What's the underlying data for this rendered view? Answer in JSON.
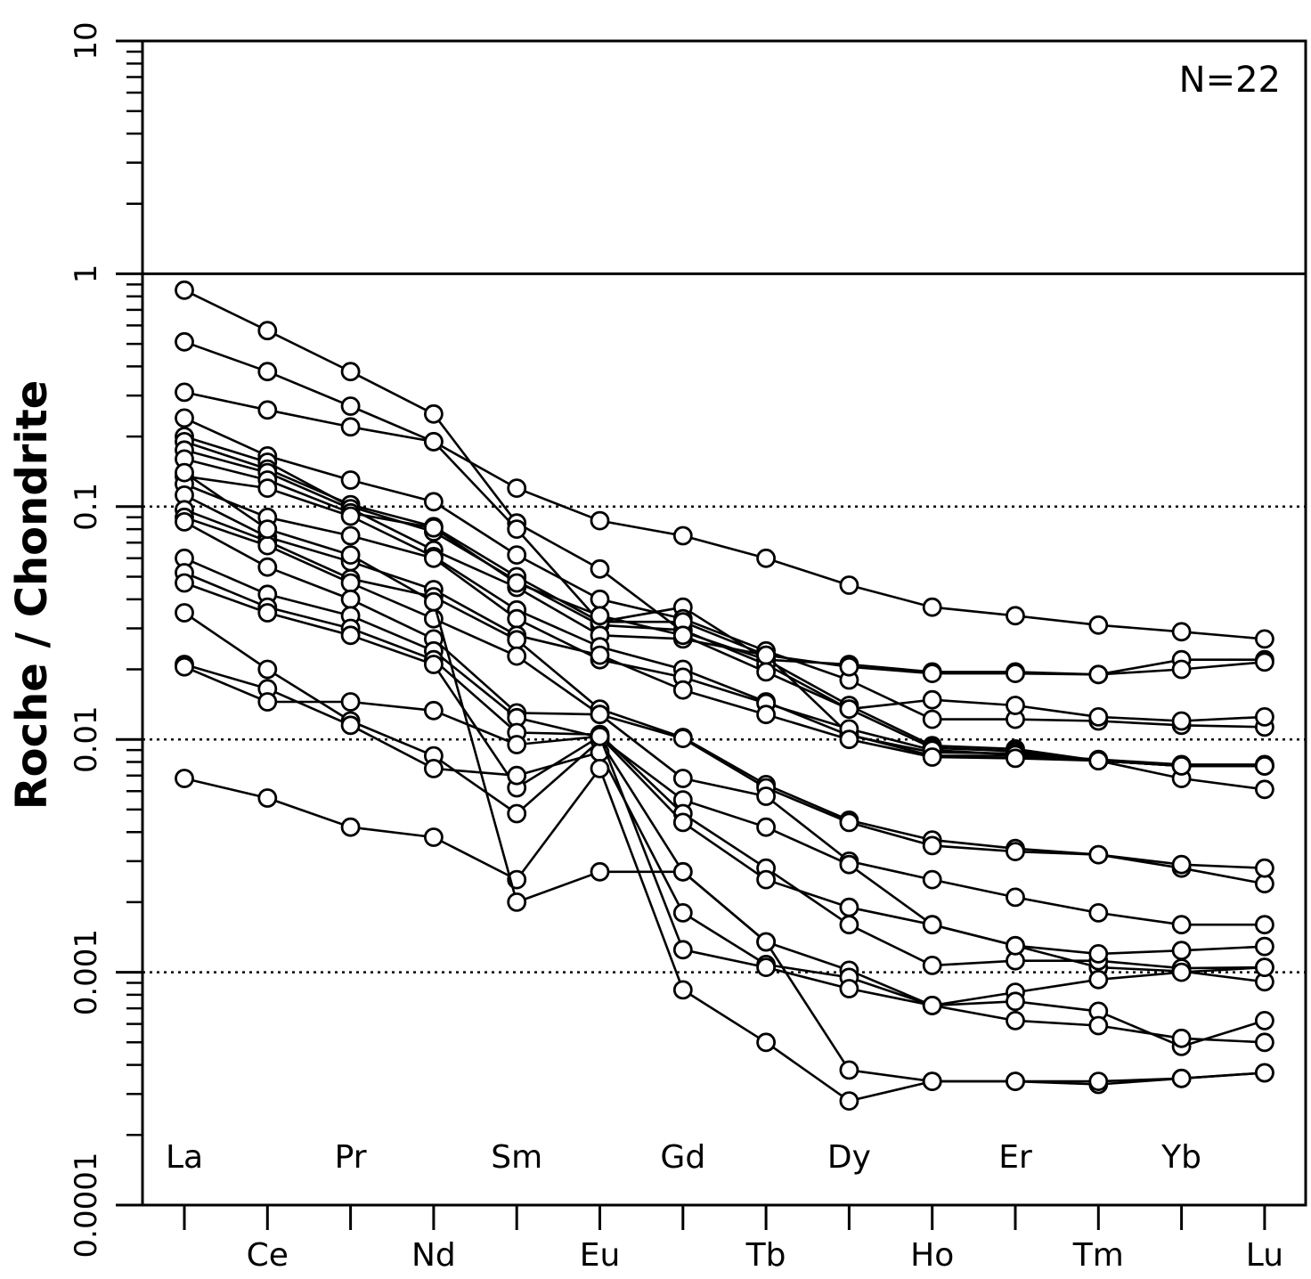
{
  "chart_data": {
    "type": "line",
    "ylabel": "Roche / Chondrite",
    "yscale": "log",
    "ylim": [
      0.0001,
      10
    ],
    "yticks": [
      {
        "value": 10,
        "label": "10"
      },
      {
        "value": 1,
        "label": "1"
      },
      {
        "value": 0.1,
        "label": "0.1"
      },
      {
        "value": 0.01,
        "label": "0.01"
      },
      {
        "value": 0.001,
        "label": "0.001"
      },
      {
        "value": 0.0001,
        "label": "0.0001"
      }
    ],
    "reference_lines": [
      1
    ],
    "dotted_lines": [
      0.1,
      0.01,
      0.001
    ],
    "categories": [
      "La",
      "Ce",
      "Pr",
      "Nd",
      "Sm",
      "Eu",
      "Gd",
      "Tb",
      "Dy",
      "Ho",
      "Er",
      "Tm",
      "Yb",
      "Lu"
    ],
    "annotation": "N=22",
    "marker": "open-circle",
    "series": [
      {
        "values": [
          0.85,
          0.57,
          0.38,
          0.25,
          0.085,
          0.054,
          0.029,
          0.022,
          0.014,
          0.0094,
          0.0091,
          0.0081,
          0.0077,
          0.0077
        ]
      },
      {
        "values": [
          0.51,
          0.38,
          0.27,
          0.19,
          0.08,
          0.032,
          0.037,
          0.022,
          0.021,
          0.0195,
          0.0195,
          0.019,
          0.022,
          0.022
        ]
      },
      {
        "values": [
          0.31,
          0.26,
          0.22,
          0.19,
          0.12,
          0.087,
          0.075,
          0.06,
          0.046,
          0.037,
          0.034,
          0.031,
          0.029,
          0.027
        ]
      },
      {
        "values": [
          0.24,
          0.165,
          0.13,
          0.105,
          0.062,
          0.04,
          0.033,
          0.024,
          0.018,
          0.0122,
          0.0122,
          0.012,
          0.0115,
          0.0113
        ]
      },
      {
        "values": [
          0.2,
          0.155,
          0.1,
          0.078,
          0.048,
          0.031,
          0.0295,
          0.021,
          0.0135,
          0.0092,
          0.0089,
          0.0081,
          0.0077,
          0.0077
        ]
      },
      {
        "values": [
          0.19,
          0.145,
          0.102,
          0.082,
          0.05,
          0.032,
          0.032,
          0.023,
          0.0205,
          0.0192,
          0.0192,
          0.019,
          0.02,
          0.0215
        ]
      },
      {
        "values": [
          0.175,
          0.14,
          0.098,
          0.065,
          0.045,
          0.028,
          0.027,
          0.023,
          0.0105,
          0.0085,
          0.0085,
          0.0081,
          0.0068,
          0.0061
        ]
      },
      {
        "values": [
          0.16,
          0.13,
          0.094,
          0.081,
          0.047,
          0.034,
          0.028,
          0.0195,
          0.0135,
          0.0148,
          0.014,
          0.0125,
          0.012,
          0.0125
        ]
      },
      {
        "values": [
          0.135,
          0.12,
          0.091,
          0.061,
          0.036,
          0.025,
          0.02,
          0.0145,
          0.0104,
          0.0088,
          0.0087,
          0.0081,
          0.0077,
          0.0077
        ]
      },
      {
        "values": [
          0.125,
          0.09,
          0.075,
          0.06,
          0.033,
          0.022,
          0.0185,
          0.0143,
          0.0111,
          0.009,
          0.0086,
          0.0082,
          0.0078,
          0.0078
        ]
      },
      {
        "values": [
          0.112,
          0.074,
          0.058,
          0.044,
          0.028,
          0.023,
          0.0163,
          0.0128,
          0.01,
          0.0084,
          0.0083,
          0.0081,
          0.0077,
          0.0077
        ]
      },
      {
        "values": [
          0.097,
          0.071,
          0.049,
          0.041,
          0.0268,
          0.0135,
          0.0102,
          0.0064,
          0.0045,
          0.0037,
          0.0034,
          0.0032,
          0.0028,
          0.0024
        ]
      },
      {
        "values": [
          0.09,
          0.068,
          0.047,
          0.033,
          0.0228,
          0.0128,
          0.0101,
          0.0062,
          0.0044,
          0.0035,
          0.0033,
          0.0032,
          0.0029,
          0.0028
        ]
      },
      {
        "values": [
          0.086,
          0.055,
          0.04,
          0.027,
          0.013,
          0.0128,
          0.0068,
          0.0057,
          0.003,
          0.0025,
          0.0021,
          0.0018,
          0.0016,
          0.0016
        ]
      },
      {
        "values": [
          0.06,
          0.042,
          0.034,
          0.024,
          0.0124,
          0.0102,
          0.0055,
          0.0042,
          0.0029,
          0.0016,
          0.0013,
          0.00105,
          0.00101,
          0.00091
        ]
      },
      {
        "values": [
          0.052,
          0.037,
          0.03,
          0.022,
          0.0107,
          0.0105,
          0.0048,
          0.0028,
          0.0016,
          0.00107,
          0.00112,
          0.00112,
          0.00104,
          0.00105
        ]
      },
      {
        "values": [
          0.047,
          0.035,
          0.028,
          0.021,
          0.0062,
          0.0103,
          0.0044,
          0.0025,
          0.0019,
          0.0016,
          0.0013,
          0.0012,
          0.00124,
          0.00129
        ]
      },
      {
        "values": [
          0.035,
          0.02,
          0.012,
          0.0085,
          0.0048,
          0.0099,
          0.0027,
          0.00135,
          0.00102,
          0.00072,
          0.00082,
          0.00093,
          0.001,
          0.00105
        ]
      },
      {
        "values": [
          0.021,
          0.0165,
          0.0115,
          0.0075,
          0.007,
          0.0088,
          0.0018,
          0.00108,
          0.00095,
          0.00072,
          0.00075,
          0.00068,
          0.00048,
          0.00062
        ]
      },
      {
        "values": [
          0.0205,
          0.0145,
          0.0145,
          0.0133,
          0.0095,
          0.0103,
          0.00125,
          0.00105,
          0.00085,
          0.00072,
          0.00062,
          0.00059,
          0.00052,
          0.0005
        ]
      },
      {
        "values": [
          0.0068,
          0.0056,
          0.0042,
          0.0038,
          0.0025,
          0.0075,
          0.00084,
          0.0005,
          0.00028,
          0.00034,
          0.00034,
          0.00033,
          0.00035,
          0.00037
        ]
      },
      {
        "values": [
          0.14,
          0.08,
          0.062,
          0.039,
          0.002,
          0.0027,
          0.0027,
          0.00135,
          0.00038,
          0.00034,
          0.00034,
          0.00034,
          0.00035,
          0.00037
        ]
      }
    ]
  }
}
